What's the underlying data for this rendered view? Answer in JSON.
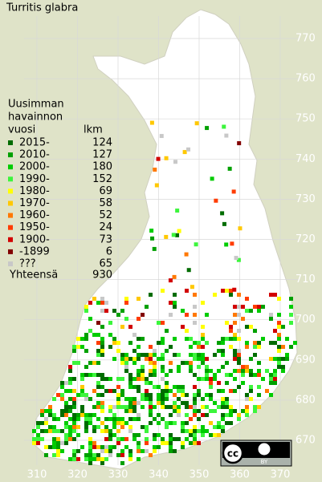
{
  "title": "Turritis glabra",
  "legend": {
    "heading": [
      "Uusimman",
      "havainnon",
      "vuosi"
    ],
    "count_heading": "lkm",
    "items": [
      {
        "label": "2015-",
        "count": 124,
        "color": "#006c00"
      },
      {
        "label": "2010-",
        "count": 127,
        "color": "#00a000"
      },
      {
        "label": "2000-",
        "count": 180,
        "color": "#00cc00"
      },
      {
        "label": "1990-",
        "count": 152,
        "color": "#3cf53c"
      },
      {
        "label": "1980-",
        "count": 69,
        "color": "#ffff00"
      },
      {
        "label": "1970-",
        "count": 58,
        "color": "#ffc800"
      },
      {
        "label": "1960-",
        "count": 52,
        "color": "#ff7800"
      },
      {
        "label": "1950-",
        "count": 24,
        "color": "#ff3c00"
      },
      {
        "label": "1900-",
        "count": 73,
        "color": "#d20000"
      },
      {
        "label": "-1899",
        "count": 6,
        "color": "#820000"
      },
      {
        "label": "???",
        "count": 65,
        "color": "#c8c8c8"
      }
    ],
    "total_label": "Yhteensä",
    "total": 930
  },
  "grid": {
    "northing": [
      670,
      680,
      690,
      700,
      710,
      720,
      730,
      740,
      750,
      760,
      770
    ],
    "easting": [
      310,
      320,
      330,
      340,
      350,
      360,
      370
    ]
  },
  "license": {
    "badge": "cc",
    "by": "BY"
  }
}
